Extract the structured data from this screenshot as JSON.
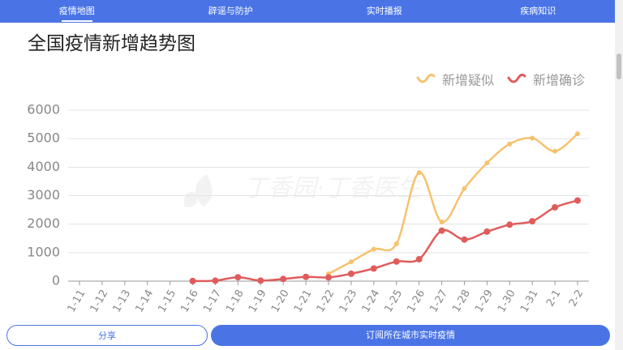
{
  "nav": {
    "tabs": [
      "疫情地图",
      "辟谣与防护",
      "实时播报",
      "疾病知识"
    ]
  },
  "chart_data": {
    "type": "line",
    "title": "全国疫情新增趋势图",
    "watermark": "丁香园·丁香医生",
    "categories": [
      "1-11",
      "1-12",
      "1-13",
      "1-14",
      "1-15",
      "1-16",
      "1-17",
      "1-18",
      "1-19",
      "1-20",
      "1-21",
      "1-22",
      "1-23",
      "1-24",
      "1-25",
      "1-26",
      "1-27",
      "1-28",
      "1-29",
      "1-30",
      "1-31",
      "2-1",
      "2-2"
    ],
    "series": [
      {
        "name": "新增疑似",
        "color": "#f7c26e",
        "values": [
          null,
          null,
          null,
          null,
          null,
          null,
          null,
          null,
          null,
          null,
          null,
          257,
          680,
          1118,
          1309,
          3806,
          2077,
          3248,
          4148,
          4812,
          5019,
          4562,
          5173
        ]
      },
      {
        "name": "新增确诊",
        "color": "#e05c5c",
        "values": [
          null,
          null,
          null,
          null,
          null,
          4,
          17,
          136,
          19,
          77,
          149,
          131,
          259,
          444,
          688,
          769,
          1771,
          1459,
          1737,
          1982,
          2102,
          2590,
          2829
        ]
      }
    ],
    "ylim": [
      0,
      6000
    ],
    "yticks": [
      0,
      1000,
      2000,
      3000,
      4000,
      5000,
      6000
    ],
    "grid": true,
    "legend": "top-right"
  },
  "buttons": [
    "分享",
    "订阅所在城市实时疫情"
  ]
}
